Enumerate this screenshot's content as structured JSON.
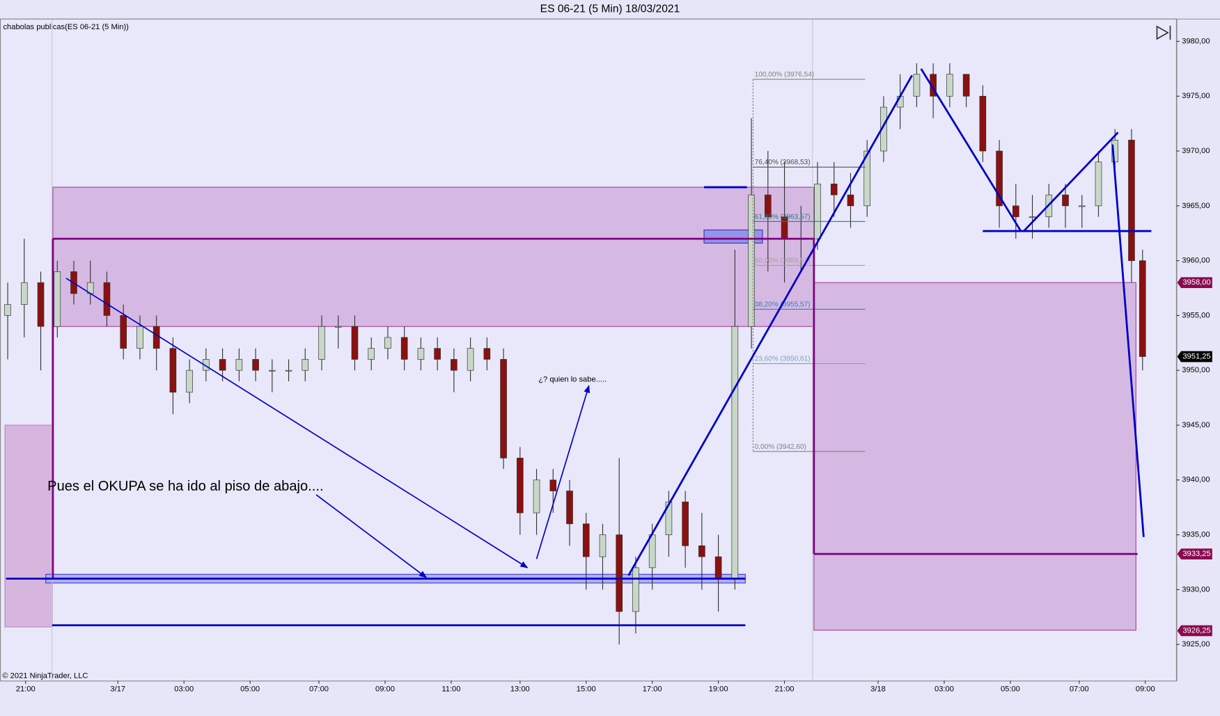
{
  "chart_data": {
    "type": "candlestick",
    "title": "ES 06-21 (5 Min)  18/03/2021",
    "indicator_label": "chabolas publicas(ES 06-21 (5 Min))",
    "copyright": "© 2021 NinjaTrader, LLC",
    "annotations": [
      "Pues el OKUPA se ha ido al piso de abajo....",
      "¿? quien lo sabe....."
    ],
    "xlim": [
      -2.8,
      424.3
    ],
    "ylim": [
      3921.7,
      3982
    ],
    "xticks": [
      {
        "value": 6.5,
        "label": "21:00"
      },
      {
        "value": 40,
        "label": "3/17"
      },
      {
        "value": 64,
        "label": "03:00"
      },
      {
        "value": 88,
        "label": "05:00"
      },
      {
        "value": 113,
        "label": "07:00"
      },
      {
        "value": 137,
        "label": "09:00"
      },
      {
        "value": 161,
        "label": "11:00"
      },
      {
        "value": 186,
        "label": "13:00"
      },
      {
        "value": 210,
        "label": "15:00"
      },
      {
        "value": 234,
        "label": "17:00"
      },
      {
        "value": 258,
        "label": "19:00"
      },
      {
        "value": 282,
        "label": "21:00"
      },
      {
        "value": 316,
        "label": "3/18"
      },
      {
        "value": 340,
        "label": "03:00"
      },
      {
        "value": 364,
        "label": "05:00"
      },
      {
        "value": 389,
        "label": "07:00"
      },
      {
        "value": 413,
        "label": "09:00"
      }
    ],
    "yticks": [
      {
        "value": 3925,
        "label": "3925,00"
      },
      {
        "value": 3930,
        "label": "3930,00"
      },
      {
        "value": 3935,
        "label": "3935,00"
      },
      {
        "value": 3940,
        "label": "3940,00"
      },
      {
        "value": 3945,
        "label": "3945,00"
      },
      {
        "value": 3950,
        "label": "3950,00"
      },
      {
        "value": 3955,
        "label": "3955,00"
      },
      {
        "value": 3960,
        "label": "3960,00"
      },
      {
        "value": 3965,
        "label": "3965,00"
      },
      {
        "value": 3970,
        "label": "3970,00"
      },
      {
        "value": 3975,
        "label": "3975,00"
      },
      {
        "value": 3980,
        "label": "3980,00"
      }
    ],
    "up_color": "#c8d8c8",
    "down_color": "#8b1010",
    "wick_color": "#303030",
    "x": [
      0,
      6,
      12,
      18,
      24,
      30,
      36,
      42,
      48,
      54,
      60,
      66,
      72,
      78,
      84,
      90,
      96,
      102,
      108,
      114,
      120,
      126,
      132,
      138,
      144,
      150,
      156,
      162,
      168,
      174,
      180,
      186,
      192,
      198,
      204,
      210,
      216,
      222,
      228,
      234,
      240,
      246,
      252,
      258,
      264,
      270,
      276,
      282,
      288,
      294,
      300,
      306,
      312,
      318,
      324,
      330,
      336,
      342,
      348,
      354,
      360,
      366,
      372,
      378,
      384,
      390,
      396,
      402,
      408,
      412
    ],
    "open": [
      3955,
      3956,
      3958,
      3954,
      3959,
      3957,
      3958,
      3955,
      3952,
      3954,
      3952,
      3948,
      3950,
      3951,
      3950,
      3951,
      3950,
      3950,
      3950,
      3951,
      3954,
      3954,
      3951,
      3952,
      3953,
      3951,
      3952,
      3951,
      3950,
      3952,
      3951,
      3942,
      3937,
      3940,
      3939,
      3936,
      3933,
      3935,
      3928,
      3932,
      3935,
      3938,
      3934,
      3933,
      3931,
      3954,
      3966,
      3964,
      3962,
      3962,
      3967,
      3966,
      3965,
      3970,
      3974,
      3975,
      3977,
      3975,
      3977,
      3975,
      3970,
      3965,
      3964,
      3964,
      3966,
      3965,
      3965,
      3969,
      3971,
      3960
    ],
    "high": [
      3958,
      3962,
      3959,
      3960,
      3960,
      3960,
      3959,
      3956,
      3955,
      3955,
      3953,
      3951,
      3952,
      3952,
      3952,
      3952,
      3951,
      3951,
      3952,
      3955,
      3955,
      3955,
      3953,
      3954,
      3954,
      3953,
      3953,
      3952,
      3953,
      3953,
      3952,
      3943,
      3941,
      3941,
      3940,
      3937,
      3936,
      3942,
      3933,
      3936,
      3939,
      3939,
      3937,
      3935,
      3961,
      3973,
      3970,
      3969,
      3965,
      3969,
      3969,
      3968,
      3971,
      3975,
      3977,
      3978,
      3978,
      3978,
      3977,
      3976,
      3971,
      3967,
      3966,
      3967,
      3967,
      3966,
      3970,
      3972,
      3972,
      3961
    ],
    "low": [
      3951,
      3953,
      3950,
      3953,
      3956,
      3956,
      3954,
      3951,
      3951,
      3950,
      3946,
      3947,
      3949,
      3949,
      3949,
      3949,
      3948,
      3949,
      3949,
      3950,
      3952,
      3950,
      3950,
      3951,
      3950,
      3950,
      3950,
      3948,
      3949,
      3950,
      3941,
      3935,
      3935,
      3937,
      3934,
      3930,
      3930,
      3925,
      3926,
      3930,
      3933,
      3932,
      3930,
      3928,
      3930,
      3952,
      3959,
      3958,
      3959,
      3961,
      3964,
      3963,
      3964,
      3969,
      3972,
      3974,
      3973,
      3974,
      3974,
      3969,
      3963,
      3962,
      3962,
      3963,
      3963,
      3963,
      3964,
      3968,
      3958,
      3950
    ],
    "close": [
      3956,
      3958,
      3954,
      3959,
      3957,
      3958,
      3955,
      3952,
      3954,
      3952,
      3948,
      3950,
      3951,
      3950,
      3951,
      3950,
      3950,
      3950,
      3951,
      3954,
      3954,
      3951,
      3952,
      3953,
      3951,
      3952,
      3951,
      3950,
      3952,
      3951,
      3942,
      3937,
      3940,
      3939,
      3936,
      3933,
      3935,
      3928,
      3932,
      3935,
      3938,
      3934,
      3933,
      3931,
      3954,
      3966,
      3964,
      3962,
      3962,
      3967,
      3966,
      3965,
      3970,
      3974,
      3975,
      3977,
      3975,
      3977,
      3975,
      3970,
      3965,
      3964,
      3964,
      3966,
      3965,
      3965,
      3969,
      3971,
      3960,
      3951.25
    ],
    "session_lines": [
      16.1,
      292.2
    ],
    "zones": [
      {
        "x0": -1,
        "x1": 16.2,
        "y0": 3945,
        "y1": 3926.6,
        "fill": "#d4b0dc",
        "stroke": "#c080c0"
      },
      {
        "x0": 16.4,
        "x1": 292.7,
        "y0": 3966.7,
        "y1": 3954,
        "fill": "#d4b4e0",
        "stroke": "#a040a0"
      },
      {
        "x0": 292.7,
        "x1": 409.6,
        "y0": 3958,
        "y1": 3926.3,
        "fill": "#d4b4e0",
        "stroke": "#a040a0"
      },
      {
        "x0": 13.8,
        "x1": 267.8,
        "y0": 3931.4,
        "y1": 3930.6,
        "fill": "#a8a8f0",
        "stroke": "#4040d0"
      },
      {
        "x0": 252.8,
        "x1": 274,
        "y0": 3962.8,
        "y1": 3961.6,
        "fill": "#9090e8",
        "stroke": "#3030c0"
      }
    ],
    "lines": [
      {
        "x0": 16.4,
        "y0": 3962,
        "x1": 292.7,
        "y1": 3962,
        "color": "#800080",
        "arrow": false
      },
      {
        "x0": 16.4,
        "y0": 3962,
        "x1": 16.4,
        "y1": 3931,
        "color": "#800080",
        "arrow": false
      },
      {
        "x0": 292.7,
        "y0": 3962,
        "x1": 292.7,
        "y1": 3933.25,
        "color": "#800080",
        "arrow": false
      },
      {
        "x0": 292.7,
        "y0": 3933.25,
        "x1": 410.2,
        "y1": 3933.25,
        "color": "#800080",
        "arrow": false
      },
      {
        "x0": -0.6,
        "y0": 3931,
        "x1": 267.8,
        "y1": 3931,
        "color": "#0000c8",
        "arrow": false
      },
      {
        "x0": 16.1,
        "y0": 3926.75,
        "x1": 267.8,
        "y1": 3926.75,
        "color": "#0000c8",
        "arrow": false
      },
      {
        "x0": 252.8,
        "y0": 3966.7,
        "x1": 268.4,
        "y1": 3966.7,
        "color": "#0000c8",
        "arrow": false
      },
      {
        "x0": 354,
        "y0": 3962.7,
        "x1": 415.2,
        "y1": 3962.7,
        "color": "#0000c8",
        "arrow": false
      },
      {
        "x0": 21.2,
        "y0": 3958.4,
        "x1": 188.7,
        "y1": 3932,
        "color": "#0000c8",
        "arrow": true
      },
      {
        "x0": 112,
        "y0": 3938.65,
        "x1": 152,
        "y1": 3931.1,
        "color": "#0000c8",
        "arrow": true
      },
      {
        "x0": 192,
        "y0": 3932.8,
        "x1": 211,
        "y1": 3948.6,
        "color": "#0000c8",
        "arrow": true
      },
      {
        "x0": 225.4,
        "y0": 3931.3,
        "x1": 328.3,
        "y1": 3976.9,
        "color": "#0000c8",
        "arrow": false
      },
      {
        "x0": 331.6,
        "y0": 3977.5,
        "x1": 367.8,
        "y1": 3962.7,
        "color": "#0000c8",
        "arrow": false
      },
      {
        "x0": 368.9,
        "y0": 3962.7,
        "x1": 403.1,
        "y1": 3971.7,
        "color": "#0000c8",
        "arrow": false
      },
      {
        "x0": 401.1,
        "y0": 3970.6,
        "x1": 412.4,
        "y1": 3934.8,
        "color": "#0000c8",
        "arrow": false
      }
    ],
    "fib": {
      "x0": 270.6,
      "x1": 311.3,
      "levels": [
        {
          "value": 3976.54,
          "label": "100,00% (3976,54)",
          "color": "#808080"
        },
        {
          "value": 3968.53,
          "label": "76,40% (3968,53)",
          "color": "#505050"
        },
        {
          "value": 3963.57,
          "label": "61,80% (3963,57)",
          "color": "#208080"
        },
        {
          "value": 3959.57,
          "label": "50,00% (3959,57)",
          "color": "#a0a0a0"
        },
        {
          "value": 3955.57,
          "label": "38,20% (3955,57)",
          "color": "#3080c0"
        },
        {
          "value": 3950.61,
          "label": "23,60% (3950,61)",
          "color": "#80a0c0"
        },
        {
          "value": 3942.6,
          "label": "0,00% (3942,60)",
          "color": "#808080"
        }
      ]
    },
    "price_tags": [
      {
        "value": 3958,
        "label": "3958,00",
        "color": "#8b0a50"
      },
      {
        "value": 3951.25,
        "label": "3951,25",
        "color": "#000000"
      },
      {
        "value": 3933.25,
        "label": "3933,25",
        "color": "#8b0a50"
      },
      {
        "value": 3926.25,
        "label": "3926,25",
        "color": "#8b0a50"
      }
    ]
  }
}
